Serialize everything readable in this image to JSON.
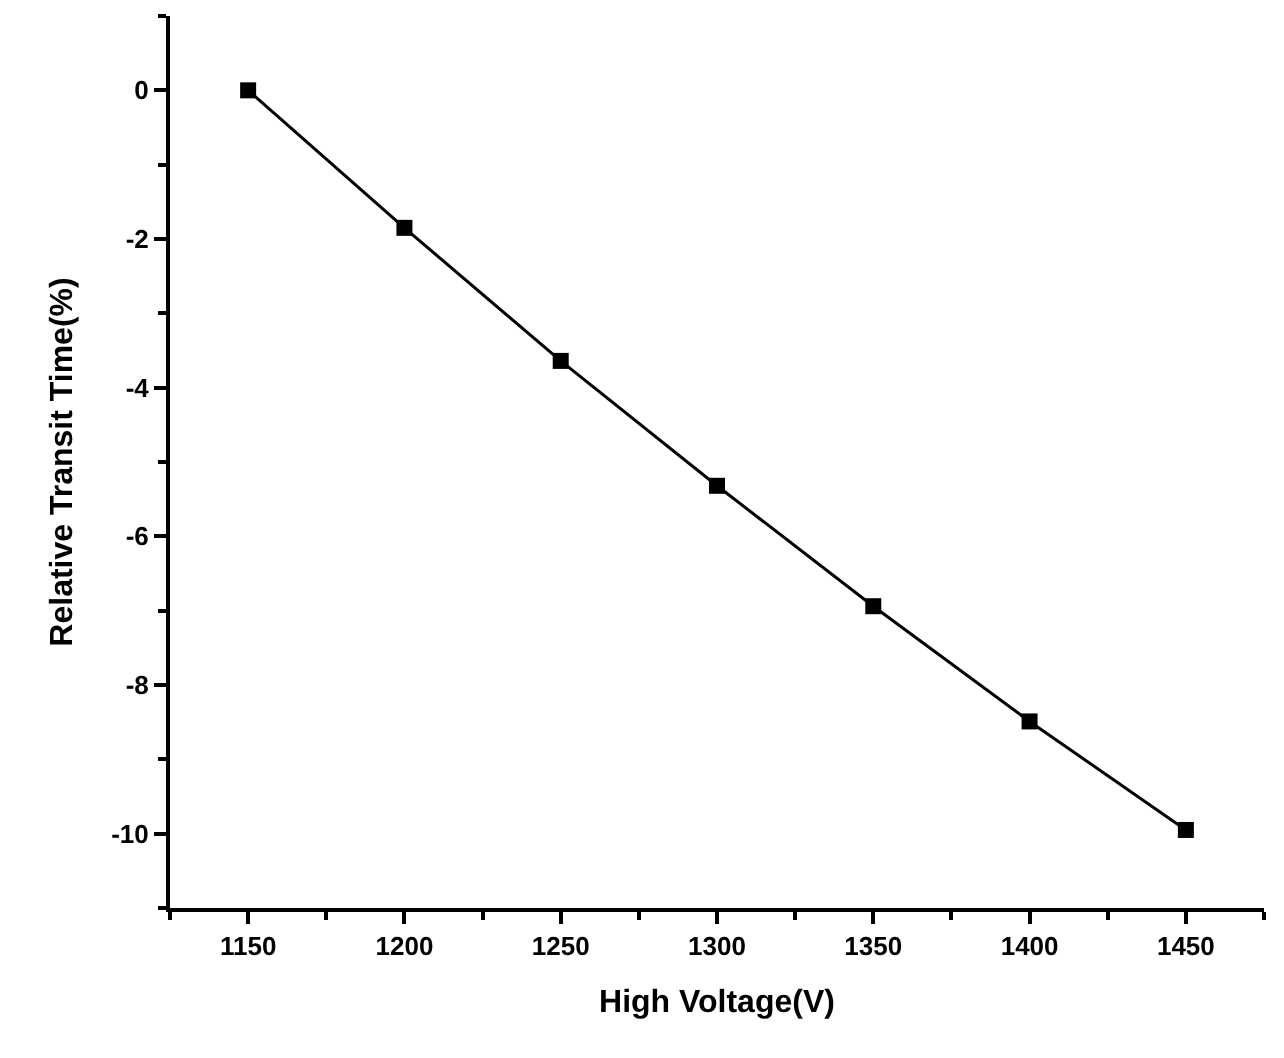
{
  "chart_data": {
    "type": "line",
    "xlabel": "High Voltage(V)",
    "ylabel": "Relative Transit Time(%)",
    "x": [
      1150,
      1200,
      1250,
      1300,
      1350,
      1400,
      1450
    ],
    "series": [
      {
        "color": "#000000",
        "values": [
          0,
          -1.85,
          -3.64,
          -5.32,
          -6.94,
          -8.49,
          -9.95
        ]
      }
    ],
    "xlim": [
      1125,
      1475
    ],
    "xticks": [
      1150,
      1200,
      1250,
      1300,
      1350,
      1400,
      1450
    ],
    "ylim": [
      -11,
      1
    ],
    "yticks": [
      -10,
      -8,
      -6,
      -4,
      -2,
      0
    ],
    "marker": "square",
    "line_style": "solid"
  }
}
